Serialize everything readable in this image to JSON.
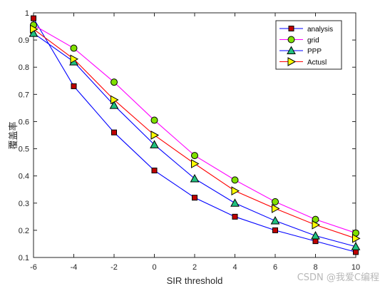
{
  "chart_data": {
    "type": "line",
    "title": "",
    "xlabel": "SIR threshold",
    "ylabel": "覆盖率",
    "xlim": [
      -6,
      10
    ],
    "ylim": [
      0.1,
      1
    ],
    "xticks": [
      -6,
      -4,
      -2,
      0,
      2,
      4,
      6,
      8,
      10
    ],
    "xtick_labels": [
      "-6",
      "-4",
      "-2",
      "0",
      "2",
      "4",
      "6",
      "8",
      "10"
    ],
    "yticks": [
      0.1,
      0.2,
      0.3,
      0.4,
      0.5,
      0.6,
      0.7,
      0.8,
      0.9,
      1
    ],
    "ytick_labels": [
      "0.1",
      "0.2",
      "0.3",
      "0.4",
      "0.5",
      "0.6",
      "0.7",
      "0.8",
      "0.9",
      "1"
    ],
    "grid": false,
    "legend_position": "top-right",
    "x": [
      -6,
      -4,
      -2,
      0,
      2,
      4,
      6,
      8,
      10
    ],
    "series": [
      {
        "name": "analysis",
        "color": "#0000ff",
        "marker": "square",
        "marker_fill": "#c00000",
        "values": [
          0.98,
          0.73,
          0.56,
          0.42,
          0.32,
          0.25,
          0.2,
          0.16,
          0.12
        ]
      },
      {
        "name": "grid",
        "color": "#ff00ff",
        "marker": "circle",
        "marker_fill": "#80e000",
        "values": [
          0.955,
          0.87,
          0.745,
          0.605,
          0.475,
          0.385,
          0.305,
          0.24,
          0.19
        ]
      },
      {
        "name": "PPP",
        "color": "#0000ff",
        "marker": "triangle",
        "marker_fill": "#20c080",
        "values": [
          0.925,
          0.82,
          0.66,
          0.515,
          0.39,
          0.3,
          0.235,
          0.18,
          0.14
        ]
      },
      {
        "name": "Actusl",
        "color": "#ff0000",
        "marker": "triangle-right",
        "marker_fill": "#ffff00",
        "values": [
          0.94,
          0.83,
          0.68,
          0.55,
          0.445,
          0.345,
          0.28,
          0.22,
          0.17
        ]
      }
    ]
  },
  "watermark": "CSDN @我爱C编程"
}
